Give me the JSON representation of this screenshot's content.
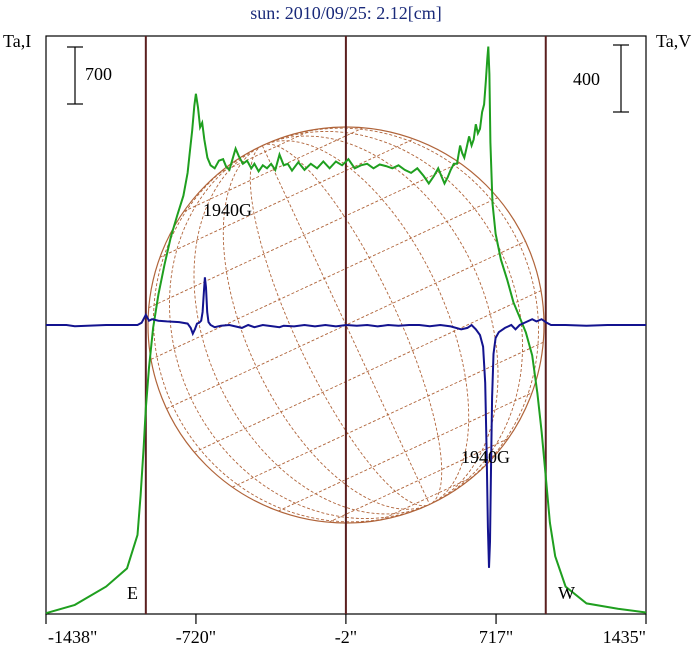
{
  "chart_data": {
    "type": "line",
    "title": "sun: 2010/09/25: 2.12[cm]",
    "left_axis_label": "Ta,I",
    "right_axis_label": "Ta,V",
    "left_scale_bar": {
      "label": "700",
      "value": 700
    },
    "right_scale_bar": {
      "label": "400",
      "value": 400
    },
    "xlim": [
      -1438,
      1435
    ],
    "x_tick_labels": [
      {
        "label": "-1438\"",
        "value": -1438
      },
      {
        "label": "-720\"",
        "value": -720
      },
      {
        "label": "-2\"",
        "value": -2
      },
      {
        "label": "717\"",
        "value": 717
      },
      {
        "label": "1435\"",
        "value": 1435
      }
    ],
    "vertical_lines": [
      -960,
      -2,
      955
    ],
    "limb_labels": {
      "east": "E",
      "west": "W"
    },
    "annotations": [
      {
        "text": "1940G",
        "series": "V",
        "x": -660
      },
      {
        "text": "1940G",
        "series": "V",
        "x": 685
      }
    ],
    "colors": {
      "intensity": "#1f9f1f",
      "polarization": "#13138f",
      "frame": "#000000",
      "divider": "#5a1f1f",
      "disk": "#b0643a",
      "title": "#1a2a7a"
    },
    "series": [
      {
        "name": "I",
        "color": "#1f9f1f",
        "ylim": [
          0,
          3800
        ],
        "points": [
          [
            -1438,
            5
          ],
          [
            -1300,
            60
          ],
          [
            -1150,
            180
          ],
          [
            -1050,
            300
          ],
          [
            -1000,
            520
          ],
          [
            -985,
            780
          ],
          [
            -970,
            1100
          ],
          [
            -960,
            1350
          ],
          [
            -945,
            1620
          ],
          [
            -925,
            1880
          ],
          [
            -900,
            2100
          ],
          [
            -870,
            2300
          ],
          [
            -840,
            2480
          ],
          [
            -810,
            2620
          ],
          [
            -780,
            2750
          ],
          [
            -760,
            2900
          ],
          [
            -750,
            3030
          ],
          [
            -738,
            3180
          ],
          [
            -728,
            3340
          ],
          [
            -720,
            3420
          ],
          [
            -710,
            3330
          ],
          [
            -700,
            3200
          ],
          [
            -690,
            3230
          ],
          [
            -680,
            3120
          ],
          [
            -665,
            3000
          ],
          [
            -650,
            2950
          ],
          [
            -630,
            2930
          ],
          [
            -610,
            2980
          ],
          [
            -590,
            2990
          ],
          [
            -575,
            2940
          ],
          [
            -560,
            2920
          ],
          [
            -545,
            2990
          ],
          [
            -530,
            3060
          ],
          [
            -515,
            3010
          ],
          [
            -495,
            2960
          ],
          [
            -475,
            2980
          ],
          [
            -455,
            2930
          ],
          [
            -440,
            2960
          ],
          [
            -420,
            2910
          ],
          [
            -400,
            2950
          ],
          [
            -380,
            2930
          ],
          [
            -360,
            2960
          ],
          [
            -340,
            2920
          ],
          [
            -320,
            3020
          ],
          [
            -300,
            2950
          ],
          [
            -280,
            2960
          ],
          [
            -260,
            2915
          ],
          [
            -230,
            2970
          ],
          [
            -200,
            2920
          ],
          [
            -170,
            2960
          ],
          [
            -140,
            2930
          ],
          [
            -110,
            2975
          ],
          [
            -80,
            2930
          ],
          [
            -50,
            2975
          ],
          [
            -20,
            2950
          ],
          [
            10,
            2990
          ],
          [
            40,
            2930
          ],
          [
            70,
            2950
          ],
          [
            100,
            2960
          ],
          [
            130,
            2930
          ],
          [
            160,
            2955
          ],
          [
            190,
            2945
          ],
          [
            220,
            2930
          ],
          [
            250,
            2950
          ],
          [
            280,
            2920
          ],
          [
            310,
            2900
          ],
          [
            340,
            2930
          ],
          [
            370,
            2880
          ],
          [
            395,
            2830
          ],
          [
            420,
            2880
          ],
          [
            440,
            2930
          ],
          [
            455,
            2880
          ],
          [
            470,
            2830
          ],
          [
            485,
            2870
          ],
          [
            500,
            2920
          ],
          [
            515,
            2960
          ],
          [
            530,
            2960
          ],
          [
            545,
            3080
          ],
          [
            555,
            3030
          ],
          [
            565,
            3000
          ],
          [
            575,
            3060
          ],
          [
            588,
            3140
          ],
          [
            600,
            3080
          ],
          [
            610,
            3120
          ],
          [
            620,
            3220
          ],
          [
            630,
            3160
          ],
          [
            640,
            3190
          ],
          [
            650,
            3300
          ],
          [
            660,
            3350
          ],
          [
            668,
            3500
          ],
          [
            675,
            3650
          ],
          [
            680,
            3730
          ],
          [
            685,
            3550
          ],
          [
            690,
            3100
          ],
          [
            700,
            2700
          ],
          [
            715,
            2500
          ],
          [
            740,
            2330
          ],
          [
            770,
            2200
          ],
          [
            800,
            2050
          ],
          [
            830,
            1950
          ],
          [
            860,
            1850
          ],
          [
            890,
            1700
          ],
          [
            915,
            1450
          ],
          [
            935,
            1200
          ],
          [
            955,
            900
          ],
          [
            975,
            600
          ],
          [
            1000,
            380
          ],
          [
            1050,
            180
          ],
          [
            1150,
            70
          ],
          [
            1300,
            35
          ],
          [
            1435,
            10
          ]
        ]
      },
      {
        "name": "V",
        "color": "#13138f",
        "ylim": [
          -2000,
          2000
        ],
        "points": [
          [
            -1438,
            0
          ],
          [
            -1340,
            0
          ],
          [
            -1300,
            -8
          ],
          [
            -1150,
            0
          ],
          [
            -1000,
            0
          ],
          [
            -980,
            15
          ],
          [
            -960,
            70
          ],
          [
            -945,
            30
          ],
          [
            -930,
            40
          ],
          [
            -900,
            30
          ],
          [
            -860,
            25
          ],
          [
            -800,
            20
          ],
          [
            -760,
            10
          ],
          [
            -745,
            -20
          ],
          [
            -735,
            -60
          ],
          [
            -725,
            -30
          ],
          [
            -715,
            10
          ],
          [
            -705,
            15
          ],
          [
            -695,
            30
          ],
          [
            -688,
            90
          ],
          [
            -682,
            230
          ],
          [
            -677,
            330
          ],
          [
            -672,
            260
          ],
          [
            -666,
            90
          ],
          [
            -660,
            20
          ],
          [
            -650,
            0
          ],
          [
            -630,
            -15
          ],
          [
            -600,
            -5
          ],
          [
            -560,
            0
          ],
          [
            -500,
            -20
          ],
          [
            -470,
            0
          ],
          [
            -440,
            -15
          ],
          [
            -400,
            0
          ],
          [
            -350,
            -10
          ],
          [
            -320,
            -15
          ],
          [
            -300,
            -5
          ],
          [
            -250,
            -10
          ],
          [
            -200,
            0
          ],
          [
            -150,
            -10
          ],
          [
            -100,
            0
          ],
          [
            -50,
            -10
          ],
          [
            0,
            0
          ],
          [
            50,
            -5
          ],
          [
            100,
            0
          ],
          [
            150,
            -10
          ],
          [
            200,
            0
          ],
          [
            250,
            -5
          ],
          [
            300,
            0
          ],
          [
            350,
            0
          ],
          [
            400,
            -8
          ],
          [
            450,
            0
          ],
          [
            500,
            -10
          ],
          [
            550,
            -30
          ],
          [
            580,
            -20
          ],
          [
            600,
            0
          ],
          [
            620,
            -30
          ],
          [
            640,
            -70
          ],
          [
            655,
            -150
          ],
          [
            665,
            -400
          ],
          [
            672,
            -900
          ],
          [
            678,
            -1400
          ],
          [
            683,
            -1680
          ],
          [
            688,
            -1500
          ],
          [
            693,
            -1000
          ],
          [
            698,
            -500
          ],
          [
            705,
            -200
          ],
          [
            715,
            -90
          ],
          [
            730,
            -50
          ],
          [
            760,
            -20
          ],
          [
            790,
            0
          ],
          [
            810,
            -30
          ],
          [
            830,
            0
          ],
          [
            860,
            20
          ],
          [
            890,
            40
          ],
          [
            910,
            25
          ],
          [
            935,
            40
          ],
          [
            960,
            15
          ],
          [
            980,
            0
          ],
          [
            1050,
            0
          ],
          [
            1150,
            -5
          ],
          [
            1250,
            0
          ],
          [
            1350,
            0
          ],
          [
            1435,
            0
          ]
        ]
      }
    ]
  }
}
